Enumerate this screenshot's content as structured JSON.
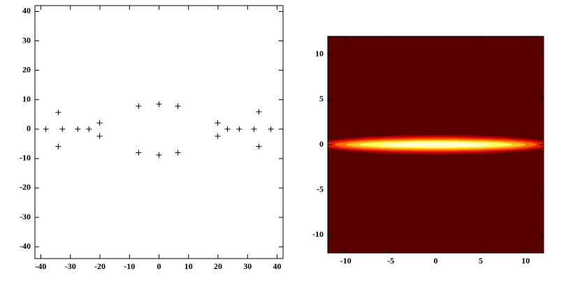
{
  "chart_data": [
    {
      "type": "scatter",
      "marker": "+",
      "color": "#000000",
      "x": [
        -38.3,
        -34.1,
        -34.1,
        -32.7,
        -27.5,
        -23.7,
        -20.1,
        -20.1,
        -6.9,
        -6.9,
        0,
        0,
        6.4,
        6.4,
        19.9,
        19.9,
        23.2,
        27.2,
        32.2,
        33.8,
        33.8,
        37.9
      ],
      "values": [
        0,
        5.7,
        -5.9,
        0,
        0,
        0,
        2.1,
        -2.4,
        7.8,
        -8,
        8.5,
        -8.8,
        7.8,
        -8,
        2.1,
        -2.4,
        0,
        0,
        0,
        5.9,
        -5.9,
        0
      ],
      "xlim": [
        -42,
        42
      ],
      "ylim": [
        -44,
        42
      ],
      "xticks": [
        -40,
        -30,
        -20,
        -10,
        0,
        10,
        20,
        30,
        40
      ],
      "yticks": [
        -40,
        -30,
        -20,
        -10,
        0,
        10,
        20,
        30,
        40
      ]
    },
    {
      "type": "contour",
      "background": "#580000",
      "contours": [
        {
          "color": "#b00000",
          "rx": 13,
          "ry": 1.05
        },
        {
          "color": "#e82000",
          "rx": 12.2,
          "ry": 0.85
        },
        {
          "color": "#ff7000",
          "rx": 11.2,
          "ry": 0.68
        },
        {
          "color": "#ffc020",
          "rx": 10,
          "ry": 0.52
        },
        {
          "color": "#ffff60",
          "rx": 8.5,
          "ry": 0.38
        },
        {
          "color": "#ffffd0",
          "rx": 6,
          "ry": 0.25
        }
      ],
      "xlim": [
        -12,
        12
      ],
      "ylim": [
        -12,
        12
      ],
      "xticks": [
        -10,
        -5,
        0,
        5,
        10
      ],
      "yticks": [
        -10,
        -5,
        0,
        5,
        10
      ]
    }
  ]
}
